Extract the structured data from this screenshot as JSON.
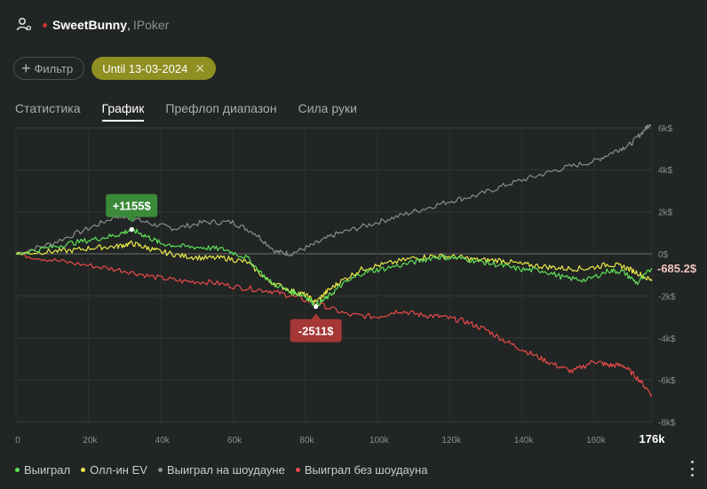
{
  "header": {
    "player_name": "SweetBunny",
    "room": "IPoker"
  },
  "filters": {
    "add_filter_label": "Фильтр",
    "date_chip_label": "Until 13-03-2024"
  },
  "tabs": [
    {
      "label": "Статистика",
      "active": false
    },
    {
      "label": "График",
      "active": true
    },
    {
      "label": "Префлоп диапазон",
      "active": false
    },
    {
      "label": "Сила руки",
      "active": false
    }
  ],
  "chart_data": {
    "type": "line",
    "x_ticks": [
      "0",
      "20k",
      "40k",
      "60k",
      "80k",
      "100k",
      "120k",
      "140k",
      "160k"
    ],
    "x_max_label": "176k",
    "xlim": [
      0,
      176000
    ],
    "y_ticks": [
      "6k$",
      "4k$",
      "2k$",
      "0$",
      "-2k$",
      "-4k$",
      "-6k$",
      "-8k$"
    ],
    "ylim": [
      -8000,
      6500
    ],
    "grid": true,
    "legend_position": "bottom-left",
    "series": [
      {
        "name": "Выиграл",
        "color": "#5fe05a",
        "points": [
          [
            0,
            0
          ],
          [
            8000,
            250
          ],
          [
            15000,
            500
          ],
          [
            22000,
            700
          ],
          [
            28000,
            900
          ],
          [
            32000,
            1155
          ],
          [
            36000,
            850
          ],
          [
            40000,
            500
          ],
          [
            46000,
            350
          ],
          [
            52000,
            300
          ],
          [
            58000,
            200
          ],
          [
            64000,
            -200
          ],
          [
            70000,
            -1300
          ],
          [
            76000,
            -1800
          ],
          [
            80000,
            -2000
          ],
          [
            83000,
            -2450
          ],
          [
            86000,
            -2100
          ],
          [
            90000,
            -1500
          ],
          [
            96000,
            -900
          ],
          [
            102000,
            -700
          ],
          [
            110000,
            -400
          ],
          [
            116000,
            -150
          ],
          [
            122000,
            -200
          ],
          [
            128000,
            -350
          ],
          [
            134000,
            -550
          ],
          [
            140000,
            -750
          ],
          [
            146000,
            -800
          ],
          [
            152000,
            -1150
          ],
          [
            158000,
            -1250
          ],
          [
            164000,
            -800
          ],
          [
            168000,
            -850
          ],
          [
            172000,
            -1400
          ],
          [
            176000,
            -685.2
          ]
        ]
      },
      {
        "name": "Олл-ин EV",
        "color": "#e8e84a",
        "points": [
          [
            0,
            0
          ],
          [
            8000,
            100
          ],
          [
            15000,
            150
          ],
          [
            22000,
            300
          ],
          [
            28000,
            350
          ],
          [
            32000,
            500
          ],
          [
            36000,
            300
          ],
          [
            40000,
            100
          ],
          [
            46000,
            -100
          ],
          [
            52000,
            -200
          ],
          [
            58000,
            -200
          ],
          [
            64000,
            -400
          ],
          [
            70000,
            -1300
          ],
          [
            76000,
            -1750
          ],
          [
            80000,
            -1950
          ],
          [
            83000,
            -2300
          ],
          [
            86000,
            -1800
          ],
          [
            90000,
            -1300
          ],
          [
            96000,
            -700
          ],
          [
            102000,
            -500
          ],
          [
            110000,
            -200
          ],
          [
            116000,
            -100
          ],
          [
            122000,
            -150
          ],
          [
            128000,
            -300
          ],
          [
            134000,
            -300
          ],
          [
            140000,
            -500
          ],
          [
            146000,
            -600
          ],
          [
            152000,
            -700
          ],
          [
            158000,
            -700
          ],
          [
            164000,
            -500
          ],
          [
            168000,
            -600
          ],
          [
            172000,
            -900
          ],
          [
            176000,
            -1300
          ]
        ]
      },
      {
        "name": "Выиграл на шоудауне",
        "color": "#8a8d8b",
        "points": [
          [
            0,
            0
          ],
          [
            10000,
            500
          ],
          [
            20000,
            1200
          ],
          [
            28000,
            1800
          ],
          [
            32000,
            1700
          ],
          [
            38000,
            1400
          ],
          [
            44000,
            1200
          ],
          [
            52000,
            1500
          ],
          [
            60000,
            1500
          ],
          [
            66000,
            1000
          ],
          [
            72000,
            100
          ],
          [
            76000,
            0
          ],
          [
            82000,
            400
          ],
          [
            88000,
            900
          ],
          [
            96000,
            1300
          ],
          [
            104000,
            1700
          ],
          [
            112000,
            2100
          ],
          [
            120000,
            2500
          ],
          [
            128000,
            2800
          ],
          [
            136000,
            3300
          ],
          [
            144000,
            3700
          ],
          [
            152000,
            4100
          ],
          [
            160000,
            4400
          ],
          [
            166000,
            4900
          ],
          [
            170000,
            5200
          ],
          [
            174000,
            5900
          ],
          [
            176000,
            6300
          ]
        ]
      },
      {
        "name": "Выиграл без шоудауна",
        "color": "#e84b4b",
        "points": [
          [
            0,
            0
          ],
          [
            10000,
            -300
          ],
          [
            20000,
            -550
          ],
          [
            30000,
            -800
          ],
          [
            38000,
            -1100
          ],
          [
            46000,
            -1300
          ],
          [
            54000,
            -1350
          ],
          [
            62000,
            -1600
          ],
          [
            70000,
            -1750
          ],
          [
            76000,
            -2000
          ],
          [
            84000,
            -2400
          ],
          [
            92000,
            -2900
          ],
          [
            100000,
            -3000
          ],
          [
            106000,
            -2700
          ],
          [
            112000,
            -2900
          ],
          [
            118000,
            -3000
          ],
          [
            124000,
            -3200
          ],
          [
            130000,
            -3600
          ],
          [
            136000,
            -4200
          ],
          [
            142000,
            -4700
          ],
          [
            148000,
            -5200
          ],
          [
            154000,
            -5600
          ],
          [
            160000,
            -5100
          ],
          [
            164000,
            -5300
          ],
          [
            168000,
            -5300
          ],
          [
            172000,
            -5900
          ],
          [
            176000,
            -6700
          ]
        ]
      }
    ],
    "annotations": [
      {
        "label": "+1155$",
        "x": 32000,
        "y": 1155,
        "color": "#3a8a3a"
      },
      {
        "label": "-2511$",
        "x": 83000,
        "y": -2511,
        "color": "#a63737"
      }
    ],
    "end_label": "-685.2$"
  }
}
